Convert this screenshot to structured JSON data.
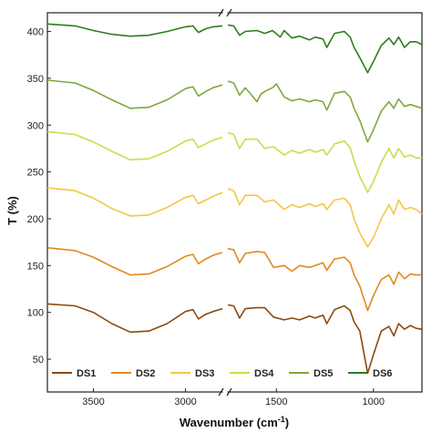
{
  "chart_data": {
    "type": "line",
    "xlabel": "Wavenumber (cm-1)",
    "xlabel_display": "Wavenumber (cm",
    "xlabel_sup": "-1",
    "xlabel_close": ")",
    "ylabel": "T (%)",
    "x_segments": [
      {
        "range": [
          3750,
          2800
        ],
        "ticks": [
          3500,
          3000
        ],
        "reversed": true
      },
      {
        "range": [
          1750,
          750
        ],
        "ticks": [
          1500,
          1000
        ],
        "reversed": true
      }
    ],
    "ylim": [
      15,
      420
    ],
    "yticks": [
      50,
      100,
      150,
      200,
      250,
      300,
      350,
      400
    ],
    "axis_break": "//",
    "legend_position": "bottom",
    "series": [
      {
        "name": "DS1",
        "color": "#8b4a0f",
        "segment1": [
          [
            3750,
            109
          ],
          [
            3600,
            107
          ],
          [
            3500,
            100
          ],
          [
            3400,
            88
          ],
          [
            3300,
            79
          ],
          [
            3200,
            80
          ],
          [
            3100,
            88
          ],
          [
            3000,
            101
          ],
          [
            2960,
            103
          ],
          [
            2930,
            93
          ],
          [
            2890,
            98
          ],
          [
            2850,
            101
          ],
          [
            2800,
            104
          ]
        ],
        "segment2": [
          [
            1750,
            108
          ],
          [
            1720,
            107
          ],
          [
            1690,
            94
          ],
          [
            1660,
            104
          ],
          [
            1600,
            105
          ],
          [
            1560,
            105
          ],
          [
            1515,
            95
          ],
          [
            1460,
            92
          ],
          [
            1420,
            94
          ],
          [
            1380,
            92
          ],
          [
            1330,
            96
          ],
          [
            1300,
            94
          ],
          [
            1260,
            97
          ],
          [
            1240,
            88
          ],
          [
            1200,
            103
          ],
          [
            1150,
            107
          ],
          [
            1120,
            102
          ],
          [
            1100,
            90
          ],
          [
            1070,
            80
          ],
          [
            1030,
            35
          ],
          [
            1000,
            55
          ],
          [
            960,
            80
          ],
          [
            920,
            85
          ],
          [
            895,
            75
          ],
          [
            870,
            88
          ],
          [
            840,
            82
          ],
          [
            810,
            86
          ],
          [
            780,
            83
          ],
          [
            750,
            82
          ]
        ]
      },
      {
        "name": "DS2",
        "color": "#e08a1e",
        "segment1": [
          [
            3750,
            169
          ],
          [
            3600,
            166
          ],
          [
            3500,
            159
          ],
          [
            3400,
            149
          ],
          [
            3300,
            140
          ],
          [
            3200,
            141
          ],
          [
            3100,
            149
          ],
          [
            3000,
            160
          ],
          [
            2960,
            162
          ],
          [
            2930,
            152
          ],
          [
            2890,
            157
          ],
          [
            2850,
            161
          ],
          [
            2800,
            164
          ]
        ],
        "segment2": [
          [
            1750,
            168
          ],
          [
            1720,
            167
          ],
          [
            1690,
            153
          ],
          [
            1660,
            163
          ],
          [
            1600,
            165
          ],
          [
            1560,
            164
          ],
          [
            1515,
            148
          ],
          [
            1460,
            150
          ],
          [
            1420,
            144
          ],
          [
            1380,
            150
          ],
          [
            1330,
            148
          ],
          [
            1300,
            150
          ],
          [
            1260,
            153
          ],
          [
            1240,
            145
          ],
          [
            1200,
            157
          ],
          [
            1150,
            159
          ],
          [
            1120,
            153
          ],
          [
            1100,
            140
          ],
          [
            1070,
            128
          ],
          [
            1030,
            102
          ],
          [
            1000,
            118
          ],
          [
            960,
            135
          ],
          [
            920,
            140
          ],
          [
            895,
            130
          ],
          [
            870,
            143
          ],
          [
            840,
            136
          ],
          [
            810,
            141
          ],
          [
            780,
            140
          ],
          [
            750,
            140
          ]
        ]
      },
      {
        "name": "DS3",
        "color": "#f2c743",
        "segment1": [
          [
            3750,
            233
          ],
          [
            3600,
            230
          ],
          [
            3500,
            222
          ],
          [
            3400,
            211
          ],
          [
            3300,
            203
          ],
          [
            3200,
            204
          ],
          [
            3100,
            212
          ],
          [
            3000,
            223
          ],
          [
            2960,
            225
          ],
          [
            2930,
            216
          ],
          [
            2890,
            220
          ],
          [
            2850,
            224
          ],
          [
            2800,
            228
          ]
        ],
        "segment2": [
          [
            1750,
            232
          ],
          [
            1720,
            230
          ],
          [
            1690,
            215
          ],
          [
            1660,
            225
          ],
          [
            1600,
            225
          ],
          [
            1560,
            218
          ],
          [
            1515,
            220
          ],
          [
            1460,
            210
          ],
          [
            1420,
            215
          ],
          [
            1380,
            212
          ],
          [
            1330,
            216
          ],
          [
            1300,
            213
          ],
          [
            1260,
            216
          ],
          [
            1240,
            210
          ],
          [
            1200,
            220
          ],
          [
            1150,
            222
          ],
          [
            1120,
            215
          ],
          [
            1100,
            200
          ],
          [
            1070,
            185
          ],
          [
            1030,
            170
          ],
          [
            1000,
            180
          ],
          [
            960,
            200
          ],
          [
            920,
            215
          ],
          [
            895,
            205
          ],
          [
            870,
            220
          ],
          [
            840,
            210
          ],
          [
            810,
            212
          ],
          [
            780,
            210
          ],
          [
            750,
            205
          ]
        ]
      },
      {
        "name": "DS4",
        "color": "#c6df4a",
        "segment1": [
          [
            3750,
            293
          ],
          [
            3600,
            290
          ],
          [
            3500,
            282
          ],
          [
            3400,
            272
          ],
          [
            3300,
            263
          ],
          [
            3200,
            264
          ],
          [
            3100,
            272
          ],
          [
            3000,
            283
          ],
          [
            2960,
            285
          ],
          [
            2930,
            276
          ],
          [
            2890,
            280
          ],
          [
            2850,
            284
          ],
          [
            2800,
            287
          ]
        ],
        "segment2": [
          [
            1750,
            292
          ],
          [
            1720,
            290
          ],
          [
            1690,
            275
          ],
          [
            1660,
            285
          ],
          [
            1600,
            285
          ],
          [
            1560,
            275
          ],
          [
            1515,
            277
          ],
          [
            1460,
            268
          ],
          [
            1420,
            273
          ],
          [
            1380,
            270
          ],
          [
            1330,
            274
          ],
          [
            1300,
            271
          ],
          [
            1260,
            274
          ],
          [
            1240,
            268
          ],
          [
            1200,
            280
          ],
          [
            1150,
            283
          ],
          [
            1120,
            276
          ],
          [
            1100,
            262
          ],
          [
            1070,
            245
          ],
          [
            1030,
            228
          ],
          [
            1000,
            240
          ],
          [
            960,
            260
          ],
          [
            920,
            275
          ],
          [
            895,
            265
          ],
          [
            870,
            275
          ],
          [
            840,
            266
          ],
          [
            810,
            268
          ],
          [
            780,
            265
          ],
          [
            750,
            265
          ]
        ]
      },
      {
        "name": "DS5",
        "color": "#7ea83a",
        "segment1": [
          [
            3750,
            348
          ],
          [
            3600,
            345
          ],
          [
            3500,
            337
          ],
          [
            3400,
            327
          ],
          [
            3300,
            318
          ],
          [
            3200,
            319
          ],
          [
            3100,
            327
          ],
          [
            3000,
            339
          ],
          [
            2960,
            341
          ],
          [
            2930,
            331
          ],
          [
            2890,
            336
          ],
          [
            2850,
            340
          ],
          [
            2800,
            343
          ]
        ],
        "segment2": [
          [
            1750,
            347
          ],
          [
            1720,
            345
          ],
          [
            1690,
            332
          ],
          [
            1660,
            340
          ],
          [
            1620,
            330
          ],
          [
            1600,
            325
          ],
          [
            1580,
            333
          ],
          [
            1560,
            336
          ],
          [
            1520,
            340
          ],
          [
            1500,
            344
          ],
          [
            1460,
            330
          ],
          [
            1420,
            326
          ],
          [
            1380,
            328
          ],
          [
            1330,
            325
          ],
          [
            1300,
            327
          ],
          [
            1260,
            325
          ],
          [
            1240,
            316
          ],
          [
            1200,
            334
          ],
          [
            1150,
            336
          ],
          [
            1120,
            330
          ],
          [
            1100,
            318
          ],
          [
            1070,
            305
          ],
          [
            1030,
            282
          ],
          [
            1000,
            295
          ],
          [
            960,
            315
          ],
          [
            920,
            325
          ],
          [
            895,
            318
          ],
          [
            870,
            328
          ],
          [
            840,
            320
          ],
          [
            810,
            322
          ],
          [
            780,
            320
          ],
          [
            750,
            318
          ]
        ]
      },
      {
        "name": "DS6",
        "color": "#2e7d1e",
        "segment1": [
          [
            3750,
            408
          ],
          [
            3600,
            406
          ],
          [
            3500,
            401
          ],
          [
            3400,
            397
          ],
          [
            3300,
            395
          ],
          [
            3200,
            396
          ],
          [
            3100,
            400
          ],
          [
            3000,
            405
          ],
          [
            2960,
            406
          ],
          [
            2930,
            399
          ],
          [
            2890,
            403
          ],
          [
            2850,
            405
          ],
          [
            2800,
            406
          ]
        ],
        "segment2": [
          [
            1750,
            407
          ],
          [
            1720,
            406
          ],
          [
            1690,
            396
          ],
          [
            1660,
            400
          ],
          [
            1600,
            401
          ],
          [
            1560,
            398
          ],
          [
            1520,
            401
          ],
          [
            1480,
            394
          ],
          [
            1460,
            401
          ],
          [
            1420,
            393
          ],
          [
            1380,
            395
          ],
          [
            1330,
            391
          ],
          [
            1300,
            394
          ],
          [
            1260,
            392
          ],
          [
            1240,
            383
          ],
          [
            1200,
            398
          ],
          [
            1150,
            400
          ],
          [
            1120,
            394
          ],
          [
            1100,
            383
          ],
          [
            1070,
            372
          ],
          [
            1030,
            356
          ],
          [
            1000,
            368
          ],
          [
            960,
            385
          ],
          [
            920,
            393
          ],
          [
            895,
            386
          ],
          [
            870,
            394
          ],
          [
            840,
            383
          ],
          [
            810,
            389
          ],
          [
            780,
            389
          ],
          [
            750,
            386
          ]
        ]
      }
    ]
  }
}
